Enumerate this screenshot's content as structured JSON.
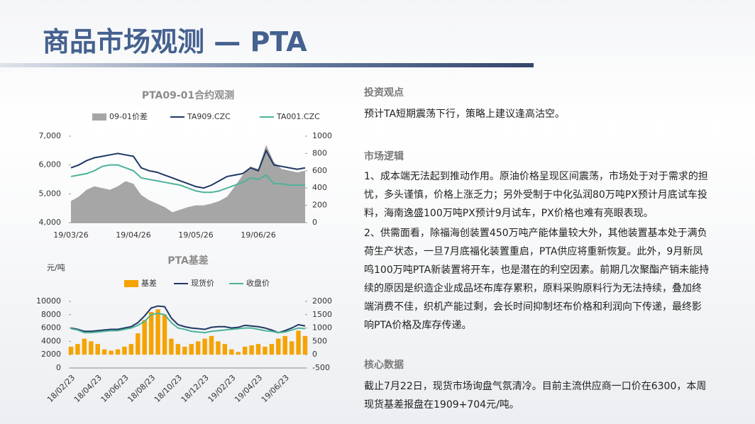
{
  "header": {
    "title": "商品市场观测 — PTA"
  },
  "chart_data": [
    {
      "type": "line",
      "title": "PTA09-01合约观测",
      "categories": [
        "19/03/26",
        null,
        null,
        null,
        null,
        null,
        null,
        null,
        "19/04/26",
        null,
        null,
        null,
        null,
        null,
        null,
        null,
        "19/05/26",
        null,
        null,
        null,
        null,
        null,
        null,
        null,
        "19/06/26",
        null,
        null,
        null,
        null,
        null,
        null
      ],
      "series": [
        {
          "name": "09-01价差",
          "mark": "area",
          "axis": "y2",
          "color": "#a6a6a6",
          "values": [
            250,
            300,
            380,
            420,
            400,
            380,
            420,
            480,
            450,
            320,
            260,
            220,
            180,
            120,
            150,
            180,
            200,
            200,
            220,
            250,
            300,
            420,
            550,
            650,
            620,
            900,
            700,
            620,
            600,
            580,
            600
          ]
        },
        {
          "name": "TA909.CZC",
          "mark": "line",
          "color": "#1f3864",
          "values": [
            5900,
            6000,
            6150,
            6250,
            6300,
            6350,
            6400,
            6350,
            6300,
            5900,
            5800,
            5750,
            5650,
            5550,
            5450,
            5350,
            5250,
            5200,
            5300,
            5450,
            5600,
            5650,
            5700,
            5900,
            5800,
            6500,
            6000,
            5950,
            5900,
            5850,
            5900
          ]
        },
        {
          "name": "TA001.CZC",
          "mark": "line",
          "color": "#4db39a",
          "values": [
            5600,
            5650,
            5700,
            5800,
            5950,
            6000,
            6000,
            5900,
            5800,
            5550,
            5500,
            5450,
            5400,
            5350,
            5300,
            5200,
            5100,
            5050,
            5050,
            5100,
            5200,
            5300,
            5400,
            5550,
            5500,
            5650,
            5350,
            5350,
            5300,
            5300,
            5300
          ]
        }
      ],
      "ylim": [
        4000,
        7000
      ],
      "yticks": [
        {
          "value": 4000,
          "label": "4,000"
        },
        {
          "value": 5000,
          "label": "5,000"
        },
        {
          "value": 6000,
          "label": "6,000"
        },
        {
          "value": 7000,
          "label": "7,000"
        }
      ],
      "y2lim": [
        0,
        1000
      ],
      "y2ticks": [
        0,
        200,
        400,
        600,
        800,
        1000
      ],
      "grid": false
    },
    {
      "type": "line",
      "title": "PTA基差",
      "ylabel": "元/吨",
      "categories": [
        "18/02/23",
        null,
        null,
        null,
        "18/04/23",
        null,
        null,
        null,
        "18/06/23",
        null,
        null,
        null,
        "18/08/23",
        null,
        null,
        null,
        "18/10/23",
        null,
        null,
        null,
        "18/12/23",
        null,
        null,
        null,
        "19/02/23",
        null,
        null,
        null,
        "19/04/23",
        null,
        null,
        null,
        "19/06/23",
        null,
        null,
        null
      ],
      "series": [
        {
          "name": "基差",
          "mark": "bar",
          "axis": "y2",
          "color": "#f5a300",
          "values": [
            300,
            400,
            600,
            500,
            400,
            200,
            150,
            200,
            300,
            400,
            800,
            1300,
            1600,
            1700,
            1500,
            600,
            400,
            300,
            400,
            500,
            600,
            700,
            500,
            400,
            200,
            100,
            300,
            350,
            400,
            300,
            400,
            600,
            700,
            500,
            900,
            700
          ]
        },
        {
          "name": "现货价",
          "mark": "line",
          "color": "#1f3864",
          "values": [
            6000,
            5800,
            5500,
            5500,
            5600,
            5700,
            5800,
            5800,
            6000,
            6200,
            6800,
            7800,
            9000,
            9300,
            9200,
            7500,
            6500,
            6200,
            6000,
            5900,
            5800,
            6100,
            6200,
            6200,
            6000,
            6100,
            6400,
            6300,
            6200,
            6000,
            5700,
            5300,
            5600,
            6000,
            6500,
            6300
          ]
        },
        {
          "name": "收盘价",
          "mark": "line",
          "color": "#4db39a",
          "values": [
            5900,
            5700,
            5300,
            5300,
            5400,
            5500,
            5600,
            5600,
            5800,
            6000,
            6400,
            7000,
            8000,
            8200,
            8000,
            6800,
            6000,
            5800,
            5500,
            5400,
            5300,
            5500,
            5600,
            5700,
            5800,
            5900,
            6000,
            6000,
            5800,
            5600,
            5500,
            5300,
            5400,
            5700,
            6000,
            5900
          ]
        }
      ],
      "ylim": [
        0,
        10000
      ],
      "yticks": [
        0,
        2000,
        4000,
        6000,
        8000,
        10000
      ],
      "y2lim": [
        -500,
        2000
      ],
      "y2ticks": [
        -500,
        0,
        500,
        1000,
        1500,
        2000
      ],
      "grid": false
    }
  ],
  "text": {
    "sections": [
      {
        "heading": "投资观点",
        "paragraphs": [
          "预计TA短期震荡下行，策略上建议逢高沽空。"
        ]
      },
      {
        "heading": "市场逻辑",
        "paragraphs": [
          "1、成本端无法起到推动作用。原油价格呈现区间震荡，市场处于对于需求的担忧，多头谨慎，价格上涨乏力；另外受制于中化弘润80万吨PX预计月底试车投料，海南逸盛100万吨PX预计9月试车，PX价格也难有亮眼表现。",
          "2、供需面看，除福海创装置450万吨产能体量较大外，其他装置基本处于满负荷生产状态，一旦7月底福化装置重启，PTA供应将重新恢复。此外，9月新凤鸣100万吨PTA新装置将开车，也是潜在的利空因素。前期几次聚酯产销未能持续的原因是织造企业成品坯布库存累积，原料采购原料行为无法持续，叠加终端消费不佳，织机产能过剩，会长时间抑制坯布价格和利润向下传递，最终影响PTA价格及库存传递。"
        ]
      },
      {
        "heading": "核心数据",
        "paragraphs": [
          "截止7月22日，现货市场询盘气氛清冷。目前主流供应商一口价在6300，本周现货基差报盘在1909+704元/吨。"
        ]
      }
    ]
  }
}
